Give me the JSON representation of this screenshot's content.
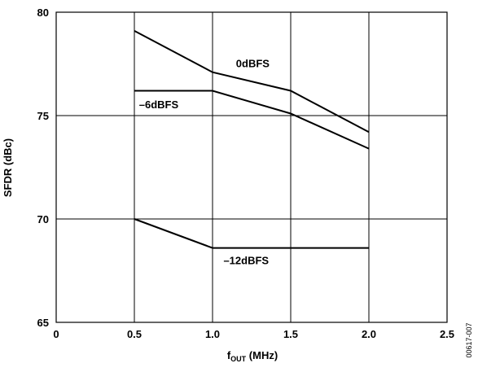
{
  "chart_data": {
    "type": "line",
    "xlabel": {
      "main": "f",
      "sub": "OUT",
      "rest": " (MHz)"
    },
    "ylabel": "SFDR (dBc)",
    "xlim": [
      0,
      2.5
    ],
    "ylim": [
      65,
      80
    ],
    "x_ticks": [
      0,
      0.5,
      1.0,
      1.5,
      2.0,
      2.5
    ],
    "x_tick_labels": [
      "0",
      "0.5",
      "1.0",
      "1.5",
      "2.0",
      "2.5"
    ],
    "y_ticks": [
      65,
      70,
      75,
      80
    ],
    "y_tick_labels": [
      "65",
      "70",
      "75",
      "80"
    ],
    "grid": true,
    "series": [
      {
        "name": "0dBFS",
        "x": [
          0.5,
          1.0,
          1.5,
          2.0
        ],
        "y": [
          79.1,
          77.1,
          76.2,
          74.2
        ]
      },
      {
        "name": "–6dBFS",
        "x": [
          0.5,
          1.0,
          1.5,
          2.0
        ],
        "y": [
          76.2,
          76.2,
          75.1,
          73.4
        ]
      },
      {
        "name": "–12dBFS",
        "x": [
          0.5,
          1.0,
          1.5,
          2.0
        ],
        "y": [
          70.0,
          68.6,
          68.6,
          68.6
        ]
      }
    ],
    "figure_id": "00617-007",
    "line_color": "#000000"
  }
}
